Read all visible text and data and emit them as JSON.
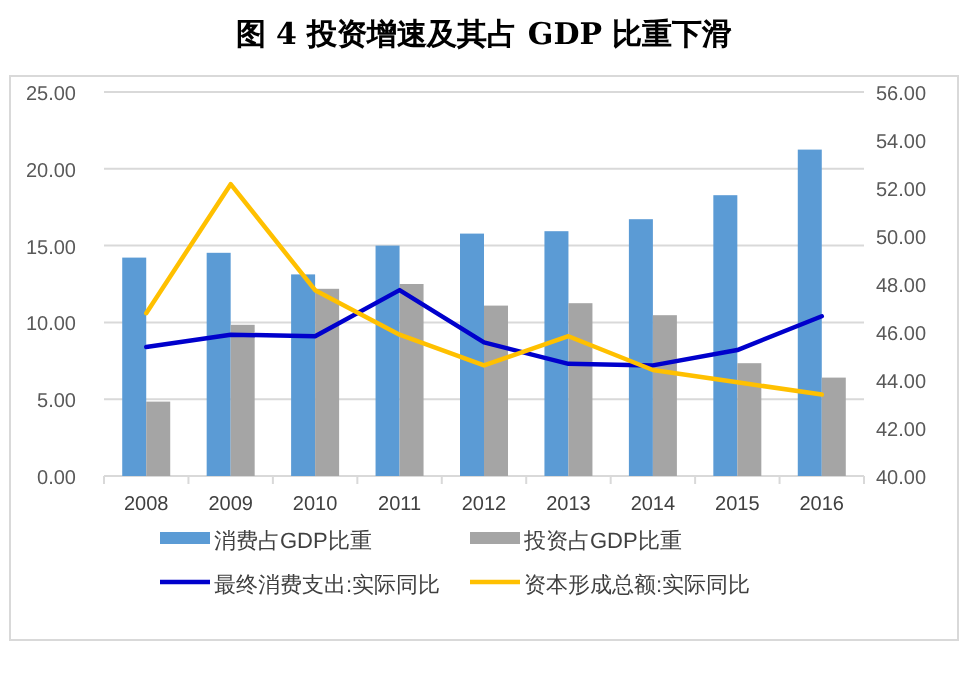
{
  "chart_data": {
    "type": "bar",
    "title": "图 4  投资增速及其占 GDP 比重下滑",
    "categories": [
      "2008",
      "2009",
      "2010",
      "2011",
      "2012",
      "2013",
      "2014",
      "2015",
      "2016"
    ],
    "series": [
      {
        "name": "消费占GDP比重",
        "axis": "y2",
        "color": "#5b9bd5",
        "values": [
          49.1,
          49.3,
          48.4,
          49.6,
          50.1,
          50.2,
          50.7,
          51.7,
          53.6
        ]
      },
      {
        "name": "投资占GDP比重",
        "axis": "y2",
        "color": "#a5a5a5",
        "values": [
          43.1,
          46.3,
          47.8,
          48.0,
          47.1,
          47.2,
          46.7,
          44.7,
          44.1
        ]
      },
      {
        "name": "最终消费支出:实际同比",
        "type": "line",
        "color": "#0000cc",
        "values": [
          8.4,
          9.2,
          9.1,
          12.1,
          8.7,
          7.3,
          7.2,
          8.2,
          10.4
        ]
      },
      {
        "name": "资本形成总额:实际同比",
        "type": "line",
        "color": "#ffc000",
        "values": [
          10.6,
          19.0,
          12.1,
          9.2,
          7.2,
          9.1,
          6.9,
          6.1,
          5.3
        ]
      }
    ],
    "ylim": [
      0,
      25
    ],
    "yticks": [
      {
        "value": 0,
        "label": "0.00"
      },
      {
        "value": 5,
        "label": "5.00"
      },
      {
        "value": 10,
        "label": "10.00"
      },
      {
        "value": 15,
        "label": "15.00"
      },
      {
        "value": 20,
        "label": "20.00"
      },
      {
        "value": 25,
        "label": "25.00"
      }
    ],
    "y2lim": [
      40,
      56
    ],
    "y2ticks": [
      {
        "value": 40,
        "label": "40.00"
      },
      {
        "value": 42,
        "label": "42.00"
      },
      {
        "value": 44,
        "label": "44.00"
      },
      {
        "value": 46,
        "label": "46.00"
      },
      {
        "value": 48,
        "label": "48.00"
      },
      {
        "value": 50,
        "label": "50.00"
      },
      {
        "value": 52,
        "label": "52.00"
      },
      {
        "value": 54,
        "label": "54.00"
      },
      {
        "value": 56,
        "label": "56.00"
      }
    ],
    "grid": "y",
    "legend": "bottom",
    "marker": "none",
    "line_style": "solid"
  }
}
